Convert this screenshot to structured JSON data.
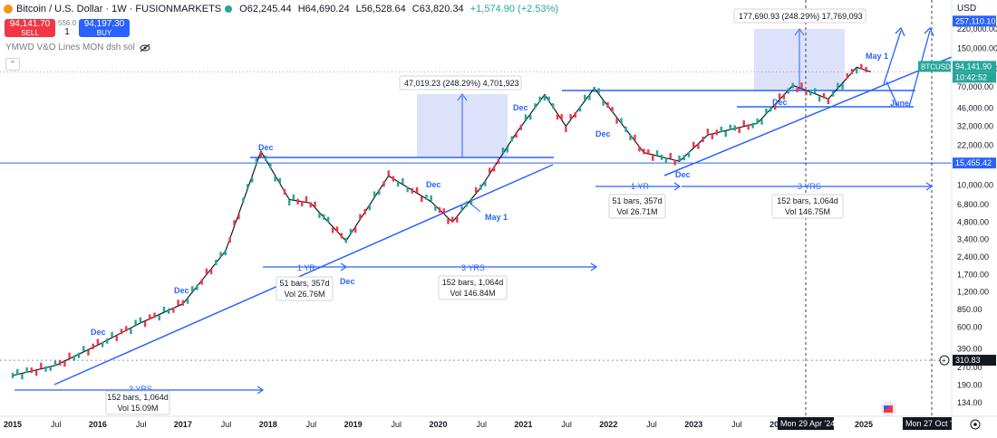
{
  "header": {
    "title": "Bitcoin / U.S. Dollar · 1W · FUSIONMARKETS",
    "open": "O62,245.44",
    "high": "H64,690.24",
    "low": "L56,528.64",
    "close": "C63,820.34",
    "change": "+1,574.90 (+2.53%)",
    "change_color": "#26a69a"
  },
  "trade": {
    "sell_price": "94,141.70",
    "sell_label": "SELL",
    "spread": "556.0",
    "qty": "1",
    "buy_price": "94,197.30",
    "buy_label": "BUY"
  },
  "indicator": {
    "name": "YMWD V&O Lines MON dsh sol",
    "icon": "eye-off-icon"
  },
  "currency": "USD",
  "chart_data": {
    "type": "line",
    "title": "Bitcoin / U.S. Dollar · 1W · FUSIONMARKETS",
    "scale": "log",
    "x_ticks": [
      "2015",
      "Jul",
      "2016",
      "Jul",
      "2017",
      "Jul",
      "2018",
      "Jul",
      "2019",
      "Jul",
      "2020",
      "Jul",
      "2021",
      "Jul",
      "2022",
      "Jul",
      "2023",
      "Jul",
      "2024",
      "2025"
    ],
    "y_ticks": [
      "220,000.00",
      "150,000.00",
      "100,000.00",
      "70,000.00",
      "46,000.00",
      "32,000.00",
      "22,000.00",
      "10,000.00",
      "6,800.00",
      "4,800.00",
      "3,400.00",
      "2,400.00",
      "1,700.00",
      "1,200.00",
      "850.00",
      "600.00",
      "390.00",
      "270.00",
      "190.00",
      "134.00"
    ],
    "price_labels": [
      {
        "label": "257,110.10",
        "value": 257110.1,
        "kind": "projection"
      },
      {
        "label": "BTCUSD",
        "value": 94141.9,
        "kind": "symbol"
      },
      {
        "label": "94,141.90",
        "value": 94141.9,
        "kind": "last"
      },
      {
        "label": "10:42:52",
        "value": 89000,
        "kind": "countdown"
      },
      {
        "label": "15,455.42",
        "value": 15455.42,
        "kind": "horizontal-line"
      },
      {
        "label": "310.83",
        "value": 310.83,
        "kind": "crosshair"
      }
    ],
    "date_labels": [
      "Mon 29 Apr '24",
      "Mon 27 Oct '24"
    ],
    "annotations": {
      "dec": [
        "Dec",
        "Dec",
        "Dec",
        "Dec",
        "Dec",
        "Dec",
        "Dec",
        "Dec"
      ],
      "may": [
        "May 1",
        "May 1"
      ],
      "june": "June",
      "measure_1": "47,019.23 (248.29%) 4,701,923",
      "measure_2": "177,690.93 (248.29%) 17,769,093",
      "period_1yr": "1 YR",
      "period_3yr": "3 YRS",
      "bars_1yr": "51 bars, 357d",
      "bars_3yr": "152 bars, 1,064d",
      "vol_a": "Vol 15.09M",
      "vol_b": "Vol 26.76M",
      "vol_c": "Vol 146.84M",
      "vol_d": "Vol 26.71M",
      "vol_e": "Vol 146.75M"
    },
    "price_points": [
      [
        "2015-01",
        230
      ],
      [
        "2015-07",
        280
      ],
      [
        "2016-01",
        420
      ],
      [
        "2016-07",
        650
      ],
      [
        "2017-01",
        950
      ],
      [
        "2017-07",
        2700
      ],
      [
        "2017-12",
        19500
      ],
      [
        "2018-04",
        7500
      ],
      [
        "2018-07",
        7000
      ],
      [
        "2018-12",
        3300
      ],
      [
        "2019-06",
        12000
      ],
      [
        "2019-12",
        7200
      ],
      [
        "2020-03",
        4800
      ],
      [
        "2020-07",
        9500
      ],
      [
        "2020-12",
        28000
      ],
      [
        "2021-04",
        60000
      ],
      [
        "2021-07",
        32000
      ],
      [
        "2021-11",
        68000
      ],
      [
        "2022-06",
        19000
      ],
      [
        "2022-11",
        16000
      ],
      [
        "2023-03",
        27000
      ],
      [
        "2023-10",
        34000
      ],
      [
        "2024-03",
        72000
      ],
      [
        "2024-08",
        55000
      ],
      [
        "2024-12",
        103000
      ],
      [
        "2025-02",
        94141.9
      ]
    ]
  },
  "colors": {
    "accent": "#2962ff",
    "up": "#26a69a",
    "down": "#f23645",
    "box": "#c5cff7"
  }
}
